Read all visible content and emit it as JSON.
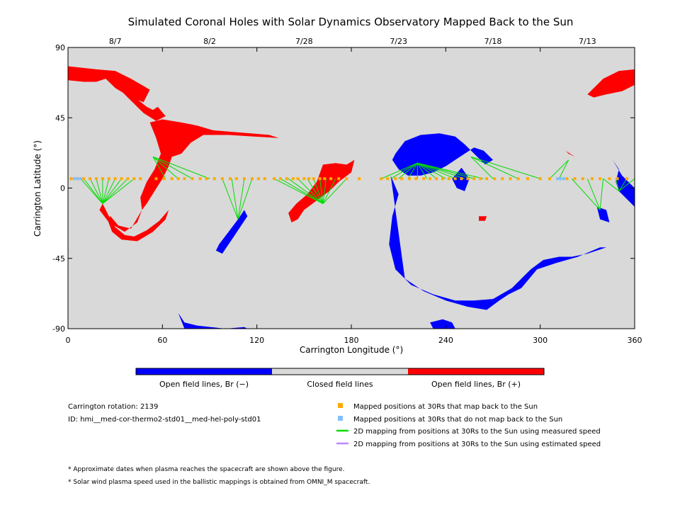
{
  "title": "Simulated Coronal Holes with Solar Dynamics Observatory Mapped Back to the Sun",
  "colors": {
    "background": "#d9d9d9",
    "negative": "#0000ff",
    "positive": "#ff0000",
    "mapped": "#ffaa00",
    "unmapped": "#7fbfff",
    "measured": "#00dd00",
    "estimated": "#bb88ff"
  },
  "chart_data": {
    "type": "scatter",
    "title": "Simulated Coronal Holes with Solar Dynamics Observatory Mapped Back to the Sun",
    "xlabel": "Carrington Longitude (°)",
    "ylabel": "Carrington Latitude (°)",
    "xlim": [
      0,
      360
    ],
    "ylim": [
      -90,
      90
    ],
    "xticks": [
      0,
      60,
      120,
      180,
      240,
      300,
      360
    ],
    "yticks": [
      -90,
      -45,
      0,
      45,
      90
    ],
    "top_axis": {
      "labels": [
        {
          "lon": 30,
          "label": "8/7"
        },
        {
          "lon": 90,
          "label": "8/2"
        },
        {
          "lon": 150,
          "label": "7/28"
        },
        {
          "lon": 210,
          "label": "7/23"
        },
        {
          "lon": 270,
          "label": "7/18"
        },
        {
          "lon": 330,
          "label": "7/13"
        }
      ]
    },
    "mapped_points_lon": [
      2,
      6,
      10,
      14,
      18,
      22,
      26,
      30,
      34,
      38,
      42,
      46,
      56,
      61,
      66,
      70,
      74,
      79,
      84,
      88,
      93,
      98,
      103,
      107,
      112,
      117,
      121,
      125,
      131,
      135,
      139,
      143,
      146,
      150,
      153,
      156,
      160,
      163,
      167,
      172,
      177,
      185,
      199,
      203,
      208,
      212,
      217,
      221,
      226,
      230,
      234,
      238,
      242,
      246,
      250,
      254,
      258,
      262,
      266,
      271,
      276,
      281,
      286,
      292,
      300,
      306,
      317,
      322,
      327,
      333,
      338,
      344,
      349,
      355
    ],
    "mapped_lat": 6,
    "unmapped_points_lon": [
      4,
      6,
      8,
      311,
      313,
      315
    ],
    "coronal_holes": [
      {
        "polarity": "positive",
        "name": "north-polar-west",
        "lon": [
          0,
          18,
          30,
          40,
          52,
          48,
          40,
          30,
          24,
          18,
          10,
          0
        ],
        "lat": [
          78,
          76,
          75,
          70,
          63,
          55,
          58,
          64,
          70,
          68,
          68,
          69
        ]
      },
      {
        "polarity": "positive",
        "name": "arm-1",
        "lon": [
          24,
          32,
          40,
          50,
          54,
          57,
          62,
          56,
          48,
          38,
          30,
          24
        ],
        "lat": [
          74,
          68,
          60,
          52,
          50,
          52,
          46,
          43,
          48,
          58,
          66,
          72
        ]
      },
      {
        "polarity": "positive",
        "name": "hole-a",
        "lon": [
          52,
          60,
          72,
          82,
          92,
          104,
          116,
          128,
          134,
          118,
          102,
          86,
          78,
          72,
          66,
          64,
          60,
          55,
          50,
          47,
          46,
          50,
          55,
          59,
          56,
          52
        ],
        "lat": [
          42,
          44,
          42,
          40,
          37,
          36,
          35,
          34,
          32,
          33,
          34,
          34,
          29,
          22,
          20,
          14,
          6,
          -2,
          -10,
          -14,
          -6,
          4,
          12,
          22,
          32,
          42
        ]
      },
      {
        "polarity": "positive",
        "name": "hook-a",
        "lon": [
          47,
          44,
          36,
          26,
          20,
          22,
          26,
          30,
          36,
          42,
          50,
          58,
          64,
          62,
          54,
          44,
          34,
          28,
          25,
          27,
          32,
          40,
          47
        ],
        "lat": [
          -14,
          -22,
          -28,
          -22,
          -14,
          -10,
          -18,
          -25,
          -30,
          -31,
          -27,
          -21,
          -14,
          -20,
          -28,
          -34,
          -33,
          -28,
          -20,
          -18,
          -24,
          -26,
          -14
        ]
      },
      {
        "polarity": "positive",
        "name": "hole-b",
        "lon": [
          162,
          170,
          177,
          182,
          180,
          172,
          166,
          158,
          150,
          146,
          142,
          140,
          145,
          152,
          158,
          162
        ],
        "lat": [
          15,
          16,
          15,
          18,
          10,
          4,
          -2,
          -8,
          -14,
          -20,
          -22,
          -16,
          -10,
          -4,
          4,
          15
        ]
      },
      {
        "polarity": "negative",
        "name": "hole-c",
        "lon": [
          208,
          214,
          224,
          236,
          246,
          252,
          260,
          265,
          270,
          264,
          258,
          252,
          246,
          240,
          232,
          224,
          216,
          210,
          206,
          208
        ],
        "lat": [
          22,
          30,
          34,
          35,
          33,
          28,
          20,
          15,
          18,
          24,
          26,
          22,
          18,
          14,
          10,
          8,
          8,
          12,
          18,
          22
        ]
      },
      {
        "polarity": "negative",
        "name": "hole-c-tail",
        "lon": [
          205,
          210,
          206,
          204,
          208,
          218,
          232,
          246,
          258,
          270,
          282,
          294,
          302,
          312,
          320,
          330,
          342,
          338,
          324,
          310,
          298,
          288,
          280,
          274,
          266,
          254,
          240,
          226,
          214,
          205
        ],
        "lat": [
          8,
          -4,
          -18,
          -36,
          -52,
          -62,
          -68,
          -72,
          -72,
          -71,
          -64,
          -52,
          -46,
          -44,
          -44,
          -42,
          -38,
          -38,
          -44,
          -48,
          -52,
          -64,
          -68,
          -72,
          -78,
          -76,
          -72,
          -66,
          -58,
          8
        ]
      },
      {
        "polarity": "negative",
        "name": "inner-c",
        "lon": [
          250,
          255,
          252,
          247,
          244,
          250
        ],
        "lat": [
          13,
          6,
          -2,
          0,
          6,
          13
        ]
      },
      {
        "polarity": "negative",
        "name": "hole-d",
        "lon": [
          112,
          108,
          102,
          96,
          94,
          98,
          106,
          114,
          112
        ],
        "lat": [
          -14,
          -20,
          -28,
          -36,
          -40,
          -42,
          -30,
          -18,
          -14
        ]
      },
      {
        "polarity": "negative",
        "name": "hole-e",
        "lon": [
          346,
          350,
          348,
          350,
          356,
          360,
          360,
          352,
          346
        ],
        "lat": [
          18,
          12,
          4,
          -2,
          -8,
          -12,
          0,
          8,
          18
        ]
      },
      {
        "polarity": "negative",
        "name": "hole-e2",
        "lon": [
          336,
          342,
          344,
          338,
          336
        ],
        "lat": [
          -12,
          -14,
          -22,
          -20,
          -12
        ]
      },
      {
        "polarity": "negative",
        "name": "south-polar",
        "lon": [
          70,
          74,
          82,
          100,
          112,
          114,
          90,
          74,
          70
        ],
        "lat": [
          -80,
          -86,
          -88,
          -90,
          -89,
          -90,
          -90,
          -90,
          -80
        ]
      },
      {
        "polarity": "negative",
        "name": "south-polar-2",
        "lon": [
          230,
          238,
          244,
          246,
          240,
          232,
          230
        ],
        "lat": [
          -86,
          -84,
          -86,
          -90,
          -90,
          -90,
          -86
        ]
      },
      {
        "polarity": "positive",
        "name": "north-polar-east",
        "lon": [
          330,
          340,
          350,
          360,
          360,
          352,
          342,
          334,
          330
        ],
        "lat": [
          60,
          70,
          75,
          76,
          66,
          62,
          60,
          58,
          60
        ]
      },
      {
        "polarity": "positive",
        "name": "small-e",
        "lon": [
          312,
          318,
          322,
          316,
          312
        ],
        "lat": [
          28,
          22,
          20,
          24,
          28
        ]
      },
      {
        "polarity": "positive",
        "name": "small-f",
        "lon": [
          261,
          266,
          265,
          261
        ],
        "lat": [
          -18,
          -18,
          -21,
          -21
        ]
      }
    ],
    "mappings": [
      {
        "end": [
          22,
          -10
        ],
        "from": [
          8,
          10,
          14,
          18,
          22,
          26,
          30,
          34,
          38,
          42
        ]
      },
      {
        "end": [
          54,
          20
        ],
        "from": [
          62,
          70,
          79,
          90
        ]
      },
      {
        "end": [
          108,
          -20
        ],
        "from": [
          98,
          104,
          112,
          117
        ]
      },
      {
        "end": [
          162,
          -10
        ],
        "from": [
          131,
          135,
          140,
          146,
          152,
          156,
          160,
          164,
          170,
          177
        ]
      },
      {
        "end": [
          222,
          16
        ],
        "from": [
          199,
          205,
          210,
          216,
          222,
          228,
          234,
          240,
          246,
          252,
          258,
          264
        ]
      },
      {
        "end": [
          256,
          20
        ],
        "from": [
          270,
          286,
          300
        ]
      },
      {
        "end": [
          318,
          18
        ],
        "from": [
          306,
          312
        ]
      },
      {
        "end": [
          338,
          -14
        ],
        "from": [
          320,
          330,
          340
        ]
      },
      {
        "end": [
          350,
          -2
        ],
        "from": [
          340,
          348,
          355,
          360
        ]
      }
    ]
  },
  "colorbar": {
    "labels": [
      "Open field lines, Br (−)",
      "Closed field lines",
      "Open field lines, Br (+)"
    ]
  },
  "info": {
    "rotation": "Carrington rotation: 2139",
    "id": "ID: hmi__med-cor-thermo2-std01__med-hel-poly-std01"
  },
  "legend": [
    {
      "kind": "square",
      "color": "#ffaa00",
      "label": "Mapped positions at 30Rs that map back to the Sun"
    },
    {
      "kind": "square",
      "color": "#7fbfff",
      "label": "Mapped positions at 30Rs that do not map back to the Sun"
    },
    {
      "kind": "line",
      "color": "#00dd00",
      "label": "2D mapping from positions at 30Rs to the Sun using measured speed"
    },
    {
      "kind": "line",
      "color": "#bb88ff",
      "label": "2D mapping from positions at 30Rs to the Sun using estimated speed"
    }
  ],
  "notes": [
    "* Approximate dates when plasma reaches the spacecraft are shown above the figure.",
    "* Solar wind plasma speed used in the ballistic mappings is obtained from OMNI_M spacecraft."
  ]
}
